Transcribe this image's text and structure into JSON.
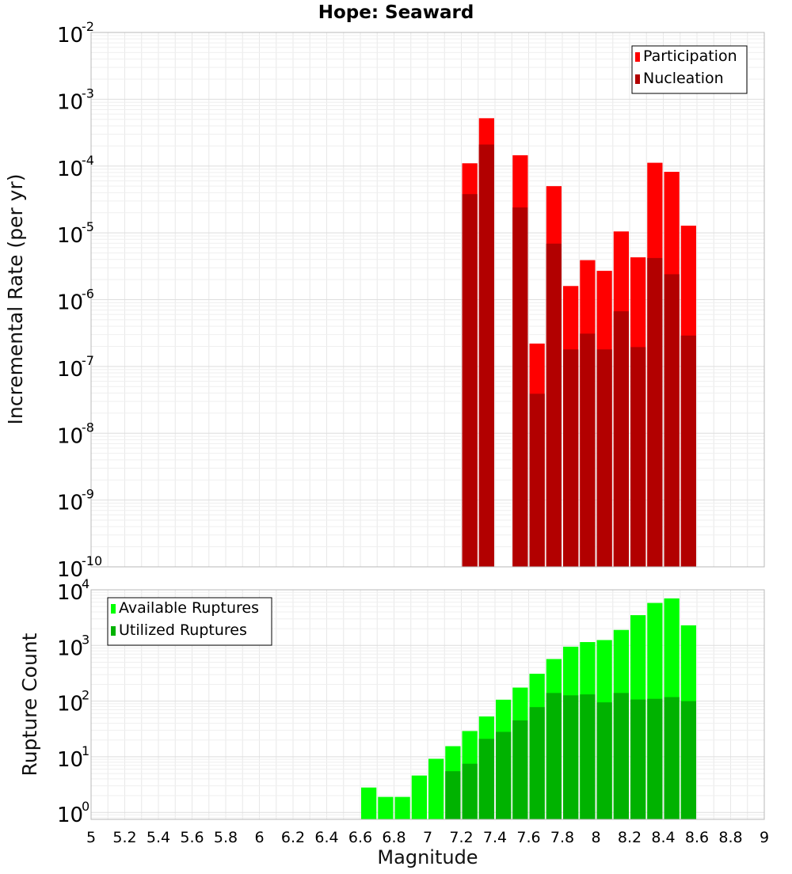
{
  "chart_data": [
    {
      "type": "bar",
      "title": "Hope: Seaward",
      "ylabel": "Incremental Rate (per yr)",
      "xlabel": "",
      "yscale": "log",
      "ylim": [
        1e-10,
        0.01
      ],
      "xlim": [
        5,
        9
      ],
      "y_tick_labels": [
        {
          "base": "10",
          "exp": "-10"
        },
        {
          "base": "10",
          "exp": "-9"
        },
        {
          "base": "10",
          "exp": "-8"
        },
        {
          "base": "10",
          "exp": "-7"
        },
        {
          "base": "10",
          "exp": "-6"
        },
        {
          "base": "10",
          "exp": "-5"
        },
        {
          "base": "10",
          "exp": "-4"
        },
        {
          "base": "10",
          "exp": "-3"
        },
        {
          "base": "10",
          "exp": "-2"
        }
      ],
      "grid": true,
      "legend_position": "top-right",
      "x": [
        7.25,
        7.35,
        7.55,
        7.65,
        7.75,
        7.85,
        7.95,
        8.05,
        8.15,
        8.25,
        8.35,
        8.45,
        8.55
      ],
      "series": [
        {
          "name": "Participation",
          "color": "#ff0000",
          "values": [
            0.00011,
            0.00052,
            0.000145,
            2.2e-07,
            5e-05,
            1.6e-06,
            3.9e-06,
            2.7e-06,
            1.05e-05,
            4.3e-06,
            0.000112,
            8.2e-05,
            1.28e-05
          ]
        },
        {
          "name": "Nucleation",
          "color": "#b20000",
          "values": [
            3.8e-05,
            0.00021,
            2.4e-05,
            3.9e-08,
            6.9e-06,
            1.8e-07,
            3.1e-07,
            1.8e-07,
            6.7e-07,
            1.95e-07,
            4.2e-06,
            2.4e-06,
            2.9e-07
          ]
        }
      ]
    },
    {
      "type": "bar",
      "title": "",
      "ylabel": "Rupture Count",
      "xlabel": "Magnitude",
      "yscale": "log",
      "ylim": [
        0.75,
        10000
      ],
      "xlim": [
        5,
        9
      ],
      "y_tick_labels": [
        {
          "base": "10",
          "exp": "0"
        },
        {
          "base": "10",
          "exp": "1"
        },
        {
          "base": "10",
          "exp": "2"
        },
        {
          "base": "10",
          "exp": "3"
        },
        {
          "base": "10",
          "exp": "4"
        }
      ],
      "x_tick_labels": [
        "5",
        "5.2",
        "5.4",
        "5.6",
        "5.8",
        "6",
        "6.2",
        "6.4",
        "6.6",
        "6.8",
        "7",
        "7.2",
        "7.4",
        "7.6",
        "7.8",
        "8",
        "8.2",
        "8.4",
        "8.6",
        "8.8",
        "9"
      ],
      "grid": true,
      "legend_position": "top-left",
      "x": [
        6.65,
        6.75,
        6.85,
        6.95,
        7.05,
        7.15,
        7.25,
        7.35,
        7.45,
        7.55,
        7.65,
        7.75,
        7.85,
        7.95,
        8.05,
        8.15,
        8.25,
        8.35,
        8.45,
        8.55
      ],
      "series": [
        {
          "name": "Available Ruptures",
          "color": "#00ff00",
          "values": [
            2.8,
            1.9,
            1.9,
            4.6,
            9.2,
            15.5,
            29,
            53,
            106,
            175,
            310,
            570,
            950,
            1150,
            1250,
            1900,
            3500,
            5800,
            7000,
            2300
          ]
        },
        {
          "name": "Utilized Ruptures",
          "color": "#00b200",
          "values": [
            null,
            null,
            null,
            null,
            null,
            5.5,
            7.5,
            21,
            28,
            45,
            78,
            140,
            127,
            132,
            95,
            140,
            107,
            110,
            118,
            100
          ]
        }
      ]
    }
  ]
}
